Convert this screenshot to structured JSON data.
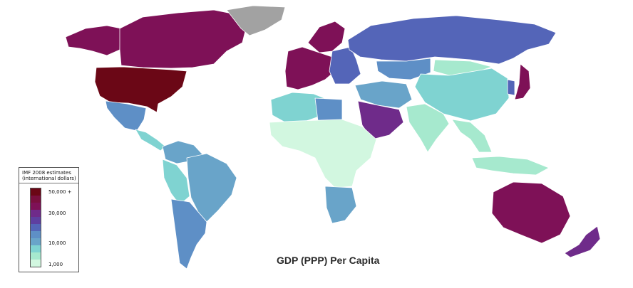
{
  "map": {
    "title": "GDP (PPP) Per Capita",
    "colors": {
      "nodata": "#a2a2a2",
      "c50k": "#6b0716",
      "c40k": "#7e1157",
      "c30k": "#6f2b8a",
      "c20k": "#5465b8",
      "c15k": "#5e8fc6",
      "c10k": "#69a4c9",
      "c5k": "#7fd3d1",
      "c2k": "#a6e9ce",
      "c1k": "#d2f7e0"
    },
    "regions": [
      {
        "name": "united-states",
        "tier": "c50k"
      },
      {
        "name": "canada",
        "tier": "c40k"
      },
      {
        "name": "alaska",
        "tier": "c40k"
      },
      {
        "name": "greenland",
        "tier": "nodata"
      },
      {
        "name": "mexico",
        "tier": "c15k"
      },
      {
        "name": "central-america",
        "tier": "c5k"
      },
      {
        "name": "colombia-venezuela",
        "tier": "c10k"
      },
      {
        "name": "peru-bolivia",
        "tier": "c5k"
      },
      {
        "name": "brazil",
        "tier": "c10k"
      },
      {
        "name": "argentina-chile",
        "tier": "c15k"
      },
      {
        "name": "western-europe",
        "tier": "c40k"
      },
      {
        "name": "scandinavia",
        "tier": "c40k"
      },
      {
        "name": "eastern-europe",
        "tier": "c20k"
      },
      {
        "name": "russia",
        "tier": "c20k"
      },
      {
        "name": "kazakhstan",
        "tier": "c15k"
      },
      {
        "name": "china",
        "tier": "c5k"
      },
      {
        "name": "mongolia",
        "tier": "c2k"
      },
      {
        "name": "india",
        "tier": "c2k"
      },
      {
        "name": "middle-east",
        "tier": "c10k"
      },
      {
        "name": "arabian-peninsula",
        "tier": "c30k"
      },
      {
        "name": "north-africa",
        "tier": "c5k"
      },
      {
        "name": "libya",
        "tier": "c15k"
      },
      {
        "name": "sub-saharan-africa",
        "tier": "c1k"
      },
      {
        "name": "southern-africa",
        "tier": "c10k"
      },
      {
        "name": "southeast-asia",
        "tier": "c2k"
      },
      {
        "name": "japan",
        "tier": "c40k"
      },
      {
        "name": "korea",
        "tier": "c20k"
      },
      {
        "name": "australia",
        "tier": "c40k"
      },
      {
        "name": "new-zealand",
        "tier": "c30k"
      },
      {
        "name": "indonesia-png",
        "tier": "c2k"
      }
    ]
  },
  "legend": {
    "title_line1": "IMF 2008 estimates",
    "title_line2": "(international dollars)",
    "ticks": [
      "50,000 +",
      "30,000",
      "10,000",
      "1,000"
    ],
    "ramp": [
      "#6b0716",
      "#7a0f3e",
      "#7e1157",
      "#6f2b8a",
      "#5e3fa0",
      "#5465b8",
      "#5e8fc6",
      "#69a4c9",
      "#7fd3d1",
      "#a6e9ce",
      "#d2f7e0"
    ]
  }
}
